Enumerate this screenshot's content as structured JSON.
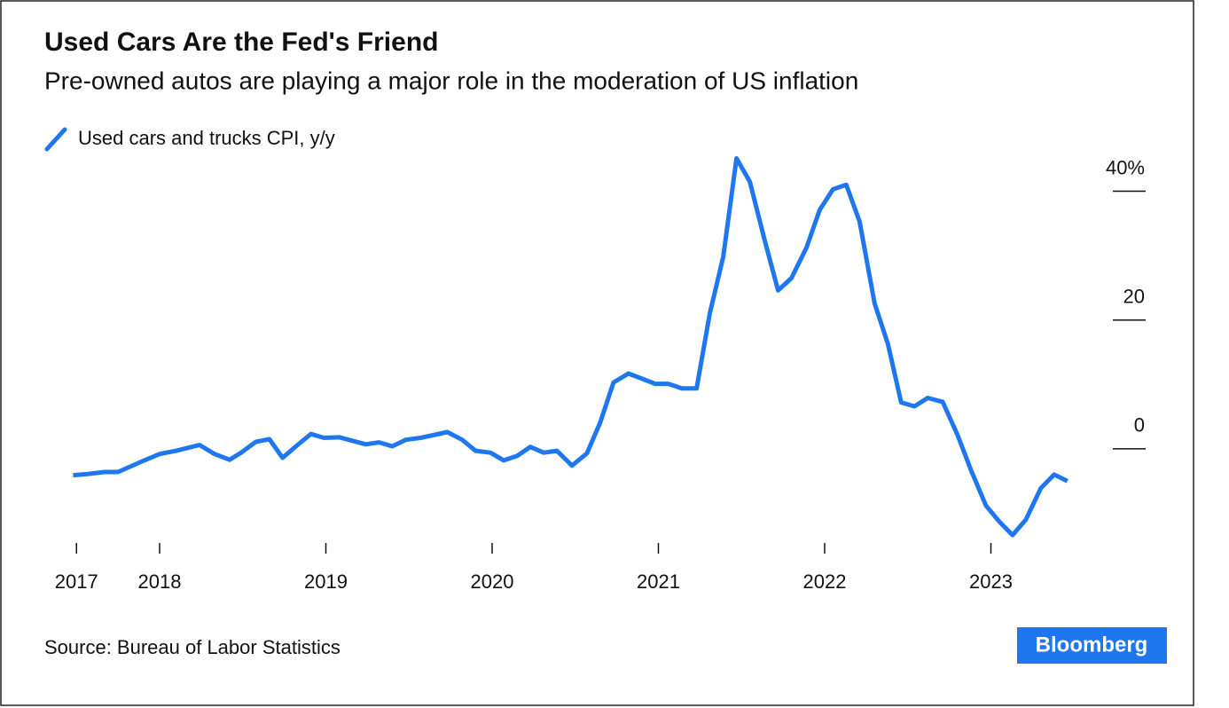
{
  "chart_data": {
    "type": "line",
    "title": "Used Cars Are the Fed's Friend",
    "subtitle": "Pre-owned autos are playing a major role in the moderation of US inflation",
    "source": "Source: Bureau of Labor Statistics",
    "logo": "Bloomberg",
    "xlim": [
      2017.4,
      2023.6
    ],
    "xticks": [
      {
        "value": 2017.5,
        "label": "2017"
      },
      2018,
      2019,
      2020,
      2021,
      2022,
      2023
    ],
    "ylim": [
      -15,
      47
    ],
    "yticks": [
      {
        "value": 40,
        "label": "40%"
      },
      20,
      0
    ],
    "x": [
      2017.48,
      2017.57,
      2017.67,
      2017.75,
      2017.89,
      2018.0,
      2018.1,
      2018.24,
      2018.33,
      2018.42,
      2018.49,
      2018.58,
      2018.66,
      2018.74,
      2018.83,
      2018.91,
      2018.99,
      2019.08,
      2019.24,
      2019.32,
      2019.4,
      2019.48,
      2019.57,
      2019.73,
      2019.82,
      2019.9,
      2019.99,
      2020.07,
      2020.15,
      2020.23,
      2020.31,
      2020.39,
      2020.48,
      2020.57,
      2020.65,
      2020.73,
      2020.82,
      2020.89,
      2020.98,
      2021.06,
      2021.14,
      2021.23,
      2021.31,
      2021.39,
      2021.47,
      2021.55,
      2021.64,
      2021.72,
      2021.8,
      2021.89,
      2021.97,
      2022.05,
      2022.13,
      2022.21,
      2022.3,
      2022.38,
      2022.46,
      2022.54,
      2022.62,
      2022.71,
      2022.8,
      2022.88,
      2022.97,
      2023.05,
      2023.13,
      2023.21,
      2023.3,
      2023.38,
      2023.46
    ],
    "series": [
      {
        "name": "Used cars and trucks CPI, y/y",
        "color": "#1f77f0",
        "values": [
          -4.1,
          -3.9,
          -3.6,
          -3.6,
          -2.0,
          -0.8,
          -0.3,
          0.6,
          -0.8,
          -1.7,
          -0.6,
          1.1,
          1.5,
          -1.4,
          0.6,
          2.3,
          1.7,
          1.8,
          0.7,
          1.0,
          0.4,
          1.4,
          1.7,
          2.6,
          1.4,
          -0.3,
          -0.6,
          -1.8,
          -1.1,
          0.3,
          -0.6,
          -0.3,
          -2.6,
          -0.7,
          4.1,
          10.3,
          11.7,
          11.0,
          10.1,
          10.1,
          9.4,
          9.4,
          21.1,
          29.8,
          45.1,
          41.5,
          32.3,
          24.6,
          26.5,
          31.2,
          37.1,
          40.3,
          41.0,
          35.3,
          22.6,
          16.3,
          7.2,
          6.6,
          7.9,
          7.3,
          2.1,
          -3.3,
          -8.8,
          -11.3,
          -13.4,
          -11.0,
          -6.1,
          -4.0,
          -5.0
        ]
      }
    ]
  }
}
